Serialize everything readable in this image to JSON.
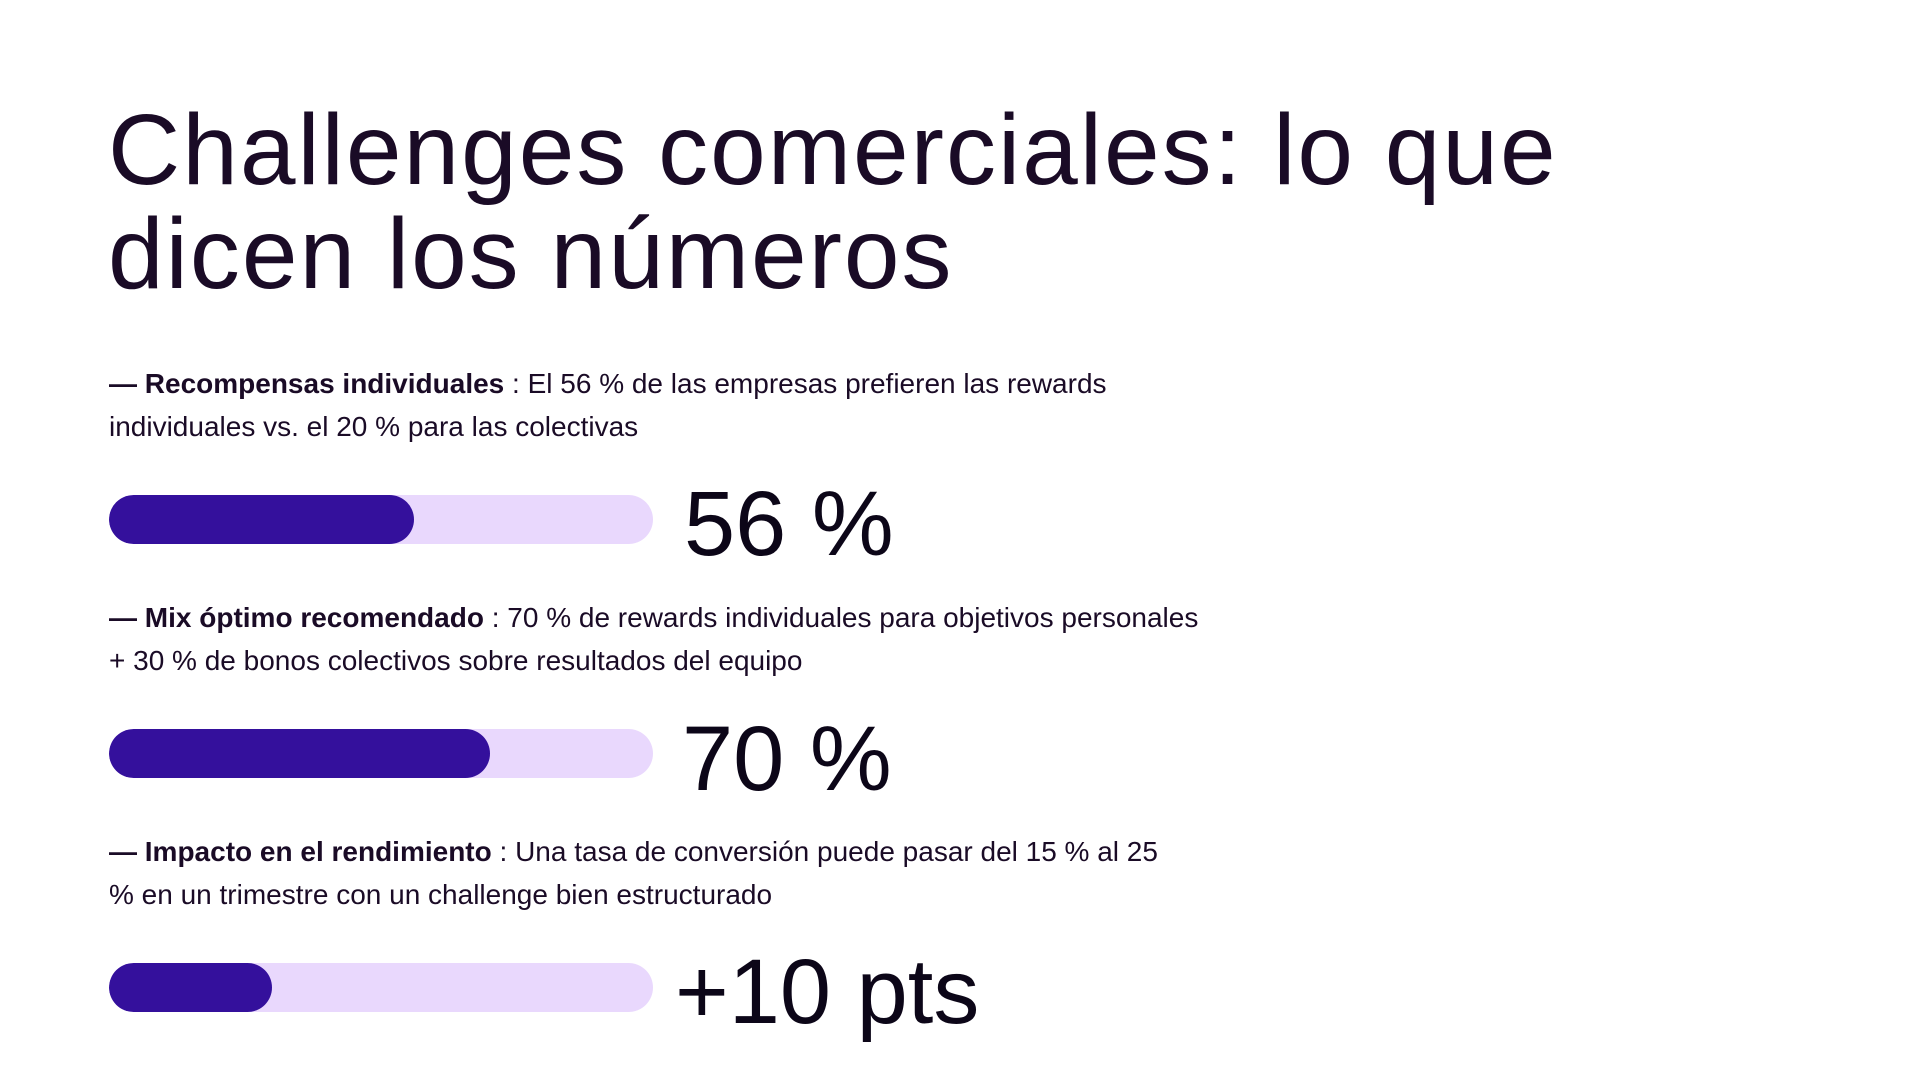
{
  "title": "Challenges comerciales: lo que dicen los números",
  "colors": {
    "bar_fill": "#34109c",
    "bar_track": "#e9d8fd",
    "text": "#1a0b26"
  },
  "stats": [
    {
      "label": "— Recompensas individuales",
      "text": " : El 56 % de las empresas prefieren las rewards individuales vs. el 20 % para las colectivas",
      "value": "56 %",
      "progress": 0.56
    },
    {
      "label": "— Mix óptimo recomendado",
      "text": " : 70 % de rewards individuales para objetivos personales + 30 % de bonos colectivos sobre resultados del equipo",
      "value": "70 %",
      "progress": 0.7
    },
    {
      "label": "— Impacto en el rendimiento",
      "text": " : Una tasa de conversión puede pasar del 15 % al 25 % en un trimestre con un challenge bien estructurado",
      "value": "+10 pts",
      "progress": 0.3
    }
  ]
}
